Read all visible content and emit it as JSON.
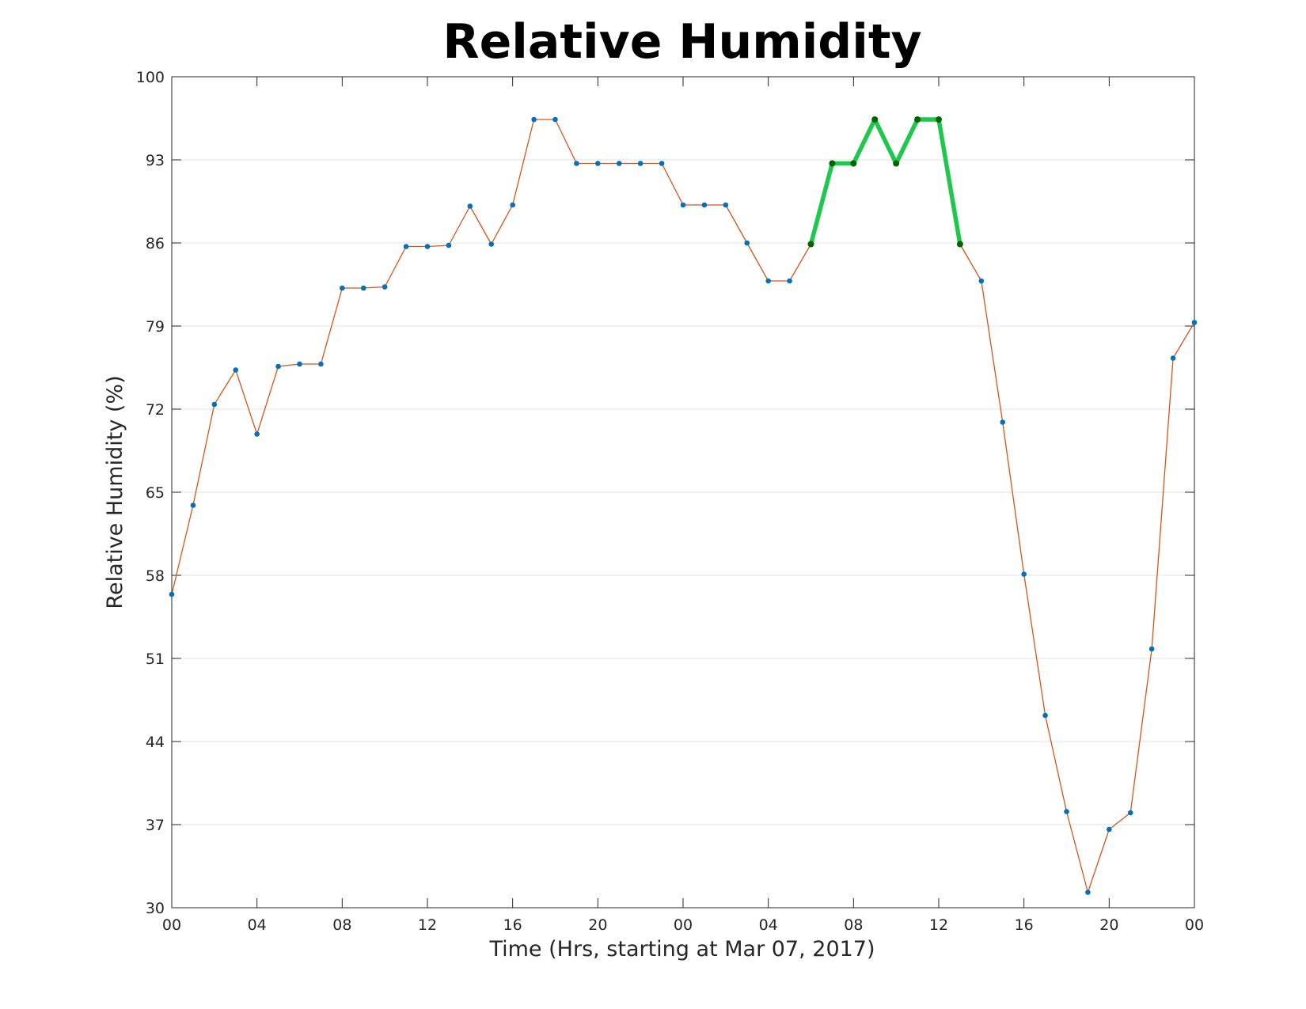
{
  "chart_data": {
    "type": "line",
    "title": "Relative Humidity",
    "xlabel": "Time (Hrs, starting at Mar 07, 2017)",
    "ylabel": "Relative Humidity (%)",
    "ylim": [
      30,
      100
    ],
    "xlim": [
      0,
      48
    ],
    "yticks": [
      30,
      37,
      44,
      51,
      58,
      65,
      72,
      79,
      86,
      93,
      100
    ],
    "xticks": [
      0,
      4,
      8,
      12,
      16,
      20,
      24,
      28,
      32,
      36,
      40,
      44,
      48
    ],
    "xtick_labels": [
      "00",
      "04",
      "08",
      "12",
      "16",
      "20",
      "00",
      "04",
      "08",
      "12",
      "16",
      "20",
      "00"
    ],
    "grid": "horizontal",
    "x": [
      0,
      1,
      2,
      3,
      4,
      5,
      6,
      7,
      8,
      9,
      10,
      11,
      12,
      13,
      14,
      15,
      16,
      17,
      18,
      19,
      20,
      21,
      22,
      23,
      24,
      25,
      26,
      27,
      28,
      29,
      30,
      31,
      32,
      33,
      34,
      35,
      36,
      37,
      38,
      39,
      40,
      41,
      42,
      43,
      44,
      45,
      46,
      47,
      48
    ],
    "series": [
      {
        "values": [
          56.4,
          63.9,
          72.4,
          75.3,
          69.9,
          75.6,
          75.8,
          75.8,
          82.2,
          82.2,
          82.3,
          85.7,
          85.7,
          85.8,
          89.1,
          85.9,
          89.2,
          96.4,
          96.4,
          92.7,
          92.7,
          92.7,
          92.7,
          92.7,
          89.2,
          89.2,
          89.2,
          86.0,
          82.8,
          82.8,
          85.9,
          92.7,
          92.7,
          96.4,
          92.7,
          96.4,
          96.4,
          85.9,
          82.8,
          70.9,
          58.1,
          46.2,
          38.1,
          31.3,
          36.6,
          38.0,
          51.8,
          76.3,
          79.3
        ],
        "color": "#d95319",
        "marker_color": "#0072bd"
      }
    ],
    "highlight": {
      "x_start": 30,
      "x_end": 37,
      "color": "#1ec84d",
      "marker_color": "#006400"
    }
  }
}
